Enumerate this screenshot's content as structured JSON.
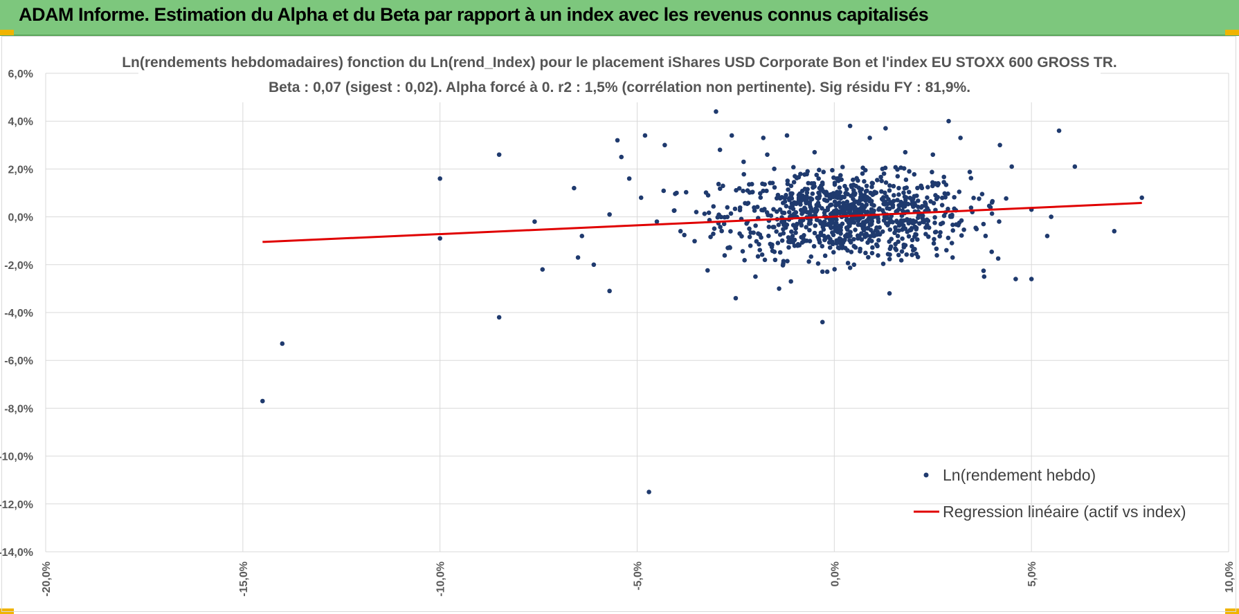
{
  "header": {
    "title": "ADAM Informe. Estimation du Alpha et du Beta par rapport à un index avec les revenus connus capitalisés"
  },
  "colors": {
    "banner": "#7dc77d",
    "points": "#1f3a6e",
    "regression": "#e00000",
    "grid": "#d9d9d9"
  },
  "chart_data": {
    "type": "scatter",
    "title": "Ln(rendements hebdomadaires) fonction du Ln(rend_Index) pour le placement iShares USD Corporate Bon et l'index EU STOXX 600 GROSS TR.",
    "subtitle": "Beta : 0,07 (sigest : 0,02). Alpha forcé à 0. r2 : 1,5% (corrélation non pertinente). Sig résidu FY : 81,9%.",
    "xlim": [
      -20,
      10
    ],
    "ylim": [
      -14,
      6
    ],
    "grid": true,
    "legend_position": "bottom-right",
    "x_ticks": [
      "-20,0%",
      "-15,0%",
      "-10,0%",
      "-5,0%",
      "0,0%",
      "5,0%",
      "10,0%"
    ],
    "y_ticks": [
      "6,0%",
      "4,0%",
      "2,0%",
      "0,0%",
      "-2,0%",
      "-4,0%",
      "-6,0%",
      "-8,0%",
      "-10,0%",
      "-12,0%",
      "-14,0%"
    ],
    "series": [
      {
        "name": "Ln(rendement hebdo)",
        "type": "scatter",
        "points": [
          [
            -14.5,
            -7.7
          ],
          [
            -14.0,
            -5.3
          ],
          [
            -10.0,
            1.6
          ],
          [
            -10.0,
            -0.9
          ],
          [
            -8.5,
            2.6
          ],
          [
            -8.5,
            -4.2
          ],
          [
            -7.6,
            -0.2
          ],
          [
            -7.4,
            -2.2
          ],
          [
            -6.6,
            1.2
          ],
          [
            -6.4,
            -0.8
          ],
          [
            -6.5,
            -1.7
          ],
          [
            -6.1,
            -2.0
          ],
          [
            -5.7,
            -3.1
          ],
          [
            -5.7,
            0.1
          ],
          [
            -5.5,
            3.2
          ],
          [
            -5.4,
            2.5
          ],
          [
            -5.2,
            1.6
          ],
          [
            -4.8,
            3.4
          ],
          [
            -4.7,
            -11.5
          ],
          [
            -4.3,
            3.0
          ],
          [
            -4.9,
            0.8
          ],
          [
            -4.5,
            -0.2
          ],
          [
            -4.0,
            1.0
          ],
          [
            -3.9,
            -0.6
          ],
          [
            -3.5,
            0.2
          ],
          [
            -3.2,
            0.9
          ],
          [
            -3.0,
            4.4
          ],
          [
            -2.9,
            2.8
          ],
          [
            -2.7,
            -1.3
          ],
          [
            -2.6,
            3.4
          ],
          [
            -2.5,
            -3.4
          ],
          [
            -2.3,
            2.3
          ],
          [
            -2.2,
            1.1
          ],
          [
            -2.0,
            -2.5
          ],
          [
            -1.8,
            3.3
          ],
          [
            -1.7,
            2.6
          ],
          [
            -1.5,
            -1.8
          ],
          [
            -1.4,
            -3.0
          ],
          [
            -1.2,
            3.4
          ],
          [
            -1.1,
            -2.7
          ],
          [
            -0.9,
            0.8
          ],
          [
            -0.7,
            -1.0
          ],
          [
            -0.5,
            2.7
          ],
          [
            -0.3,
            -4.4
          ],
          [
            0.0,
            0.2
          ],
          [
            0.2,
            -1.3
          ],
          [
            0.4,
            3.8
          ],
          [
            0.5,
            -2.0
          ],
          [
            0.7,
            0.5
          ],
          [
            0.9,
            3.3
          ],
          [
            1.0,
            -0.8
          ],
          [
            1.2,
            1.5
          ],
          [
            1.3,
            3.7
          ],
          [
            1.4,
            -3.2
          ],
          [
            1.6,
            0.7
          ],
          [
            1.8,
            2.7
          ],
          [
            2.0,
            -1.4
          ],
          [
            2.2,
            1.3
          ],
          [
            2.5,
            2.6
          ],
          [
            2.7,
            -0.3
          ],
          [
            2.9,
            4.0
          ],
          [
            3.2,
            3.3
          ],
          [
            3.5,
            0.2
          ],
          [
            3.8,
            -2.5
          ],
          [
            4.0,
            0.6
          ],
          [
            4.2,
            3.0
          ],
          [
            4.5,
            2.1
          ],
          [
            4.6,
            -2.6
          ],
          [
            5.0,
            -2.6
          ],
          [
            5.0,
            0.3
          ],
          [
            5.4,
            -0.8
          ],
          [
            5.5,
            0.0
          ],
          [
            5.7,
            3.6
          ],
          [
            6.1,
            2.1
          ],
          [
            7.1,
            -0.6
          ],
          [
            7.8,
            0.8
          ],
          [
            3.0,
            -1.7
          ],
          [
            2.3,
            0.6
          ],
          [
            1.1,
            0.0
          ],
          [
            -1.0,
            1.7
          ],
          [
            -0.2,
            0.9
          ],
          [
            0.6,
            -0.9
          ],
          [
            1.9,
            1.9
          ],
          [
            -2.4,
            -0.7
          ]
        ]
      },
      {
        "name": "Regression linéaire (actif vs index)",
        "type": "line",
        "points": [
          [
            -14.5,
            -1.05
          ],
          [
            7.8,
            0.58
          ]
        ]
      }
    ],
    "cloud": {
      "count": 900,
      "x_mean": 0.3,
      "x_sd": 1.55,
      "y_mean": 0.05,
      "y_sd": 0.9
    }
  }
}
